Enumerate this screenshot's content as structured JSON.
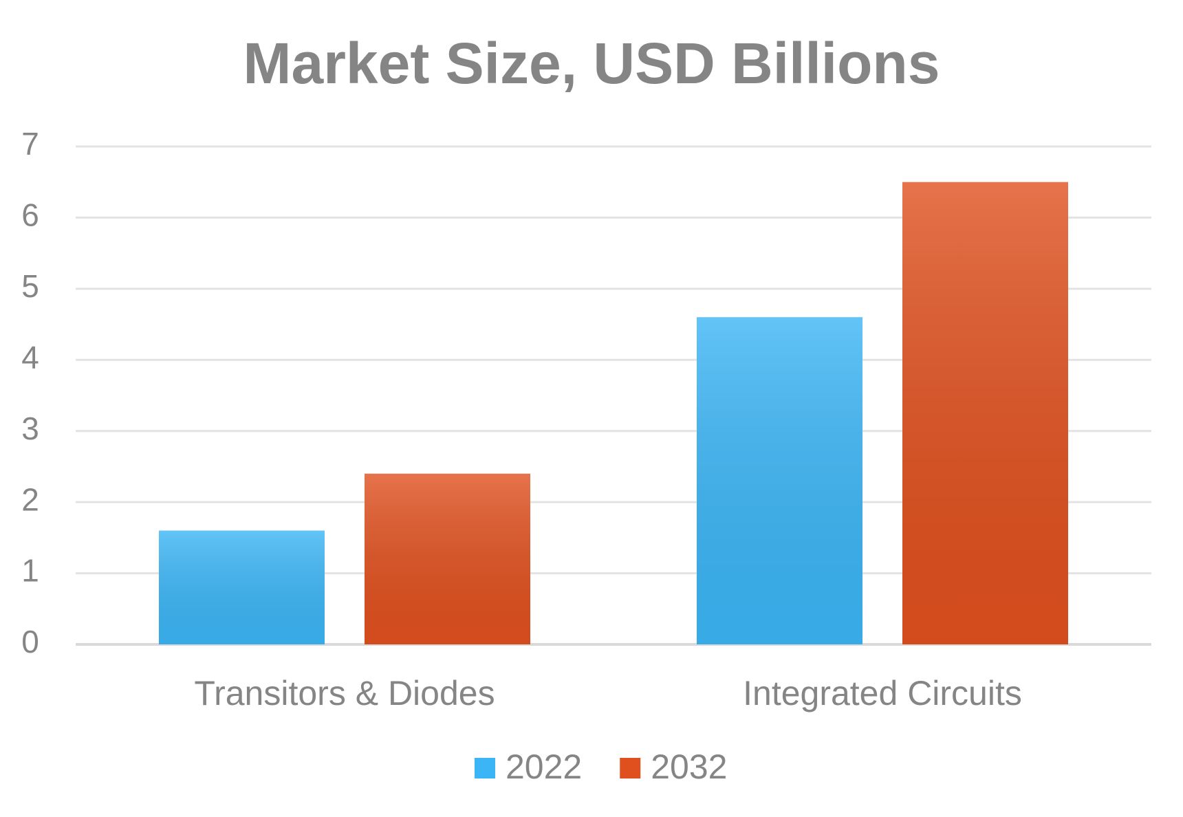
{
  "chart_data": {
    "type": "bar",
    "title": "Market Size, USD Billions",
    "categories": [
      "Transitors & Diodes",
      "Integrated Circuits"
    ],
    "series": [
      {
        "name": "2022",
        "color": "#3bb5f5",
        "values": [
          1.6,
          4.6
        ]
      },
      {
        "name": "2032",
        "color": "#e0501e",
        "values": [
          2.4,
          6.5
        ]
      }
    ],
    "ylim": [
      0,
      7
    ],
    "yticks": [
      0,
      1,
      2,
      3,
      4,
      5,
      6,
      7
    ],
    "grid": true,
    "legend": "bottom"
  }
}
